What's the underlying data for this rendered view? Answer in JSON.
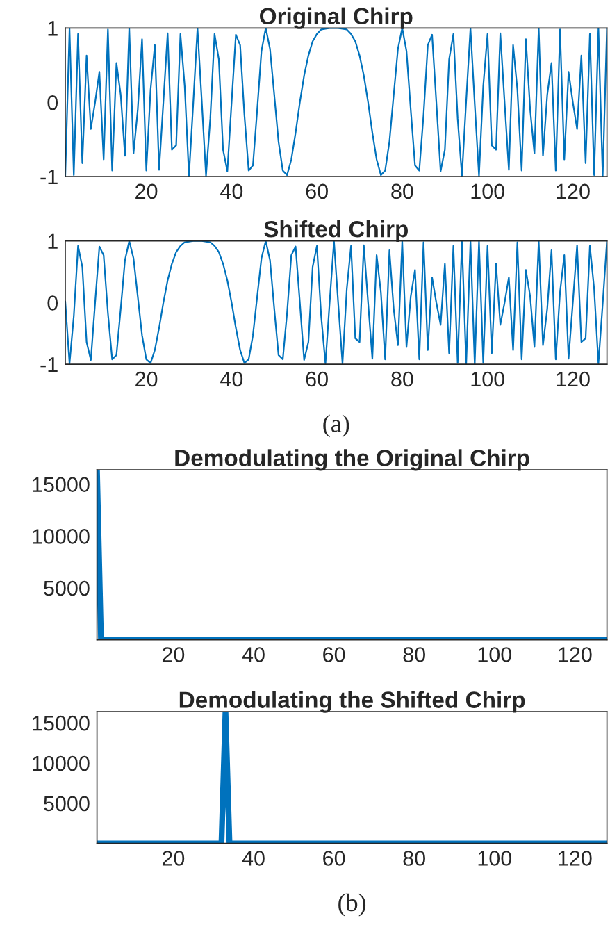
{
  "chart_data": [
    {
      "type": "line",
      "title": "Original Chirp",
      "xlim": [
        1,
        128
      ],
      "xticks": [
        20,
        40,
        60,
        80,
        100,
        120
      ],
      "ylim": [
        -1,
        1
      ],
      "yticks": [
        -1,
        0,
        1
      ],
      "grid": false,
      "legend": false,
      "x": [
        1,
        2,
        3,
        4,
        5,
        6,
        7,
        8,
        9,
        10,
        11,
        12,
        13,
        14,
        15,
        16,
        17,
        18,
        19,
        20,
        21,
        22,
        23,
        24,
        25,
        26,
        27,
        28,
        29,
        30,
        31,
        32,
        33,
        34,
        35,
        36,
        37,
        38,
        39,
        40,
        41,
        42,
        43,
        44,
        45,
        46,
        47,
        48,
        49,
        50,
        51,
        52,
        53,
        54,
        55,
        56,
        57,
        58,
        59,
        60,
        61,
        62,
        63,
        64,
        65,
        66,
        67,
        68,
        69,
        70,
        71,
        72,
        73,
        74,
        75,
        76,
        77,
        78,
        79,
        80,
        81,
        82,
        83,
        84,
        85,
        86,
        87,
        88,
        89,
        90,
        91,
        92,
        93,
        94,
        95,
        96,
        97,
        98,
        99,
        100,
        101,
        102,
        103,
        104,
        105,
        106,
        107,
        108,
        109,
        110,
        111,
        112,
        113,
        114,
        115,
        116,
        117,
        118,
        119,
        120,
        121,
        122,
        123,
        124,
        125,
        126,
        127,
        128
      ],
      "series": [
        {
          "color": "#0072bd",
          "values": [
            -1.0,
            0.99,
            -0.98,
            0.92,
            -0.82,
            0.63,
            -0.36,
            0,
            0.41,
            -0.77,
            0.98,
            -0.92,
            0.53,
            0.1,
            -0.72,
            1,
            -0.69,
            -0.1,
            0.85,
            -0.92,
            0.17,
            0.77,
            -0.91,
            0,
            0.93,
            -0.64,
            -0.58,
            0.92,
            0.22,
            -0.99,
            -0.02,
            1,
            0.02,
            -0.99,
            -0.22,
            0.92,
            0.58,
            -0.64,
            -0.93,
            0,
            0.91,
            0.77,
            -0.17,
            -0.92,
            -0.85,
            -0.1,
            0.69,
            1,
            0.72,
            0.1,
            -0.53,
            -0.92,
            -0.98,
            -0.77,
            -0.41,
            0,
            0.36,
            0.63,
            0.82,
            0.92,
            0.98,
            0.99,
            1.0,
            1,
            1.0,
            0.99,
            0.98,
            0.92,
            0.82,
            0.63,
            0.36,
            0,
            -0.41,
            -0.77,
            -0.98,
            -0.92,
            -0.53,
            0.1,
            0.72,
            1,
            0.69,
            -0.1,
            -0.85,
            -0.92,
            -0.17,
            0.77,
            0.91,
            0,
            -0.93,
            -0.64,
            0.58,
            0.92,
            -0.22,
            -0.99,
            0.02,
            1,
            -0.02,
            -0.99,
            0.22,
            0.92,
            -0.58,
            -0.64,
            0.93,
            0,
            -0.91,
            0.77,
            0.17,
            -0.92,
            0.85,
            -0.1,
            -0.69,
            1,
            -0.72,
            0.1,
            0.53,
            -0.92,
            0.98,
            -0.77,
            0.41,
            0,
            -0.36,
            0.63,
            -0.82,
            0.92,
            -0.98,
            0.99,
            -1.0,
            1
          ]
        }
      ]
    },
    {
      "type": "line",
      "title": "Shifted Chirp",
      "xlim": [
        1,
        128
      ],
      "xticks": [
        20,
        40,
        60,
        80,
        100,
        120
      ],
      "ylim": [
        -1,
        1
      ],
      "yticks": [
        -1,
        0,
        1
      ],
      "grid": false,
      "legend": false,
      "annotations": [
        "(a)"
      ],
      "x": [
        1,
        2,
        3,
        4,
        5,
        6,
        7,
        8,
        9,
        10,
        11,
        12,
        13,
        14,
        15,
        16,
        17,
        18,
        19,
        20,
        21,
        22,
        23,
        24,
        25,
        26,
        27,
        28,
        29,
        30,
        31,
        32,
        33,
        34,
        35,
        36,
        37,
        38,
        39,
        40,
        41,
        42,
        43,
        44,
        45,
        46,
        47,
        48,
        49,
        50,
        51,
        52,
        53,
        54,
        55,
        56,
        57,
        58,
        59,
        60,
        61,
        62,
        63,
        64,
        65,
        66,
        67,
        68,
        69,
        70,
        71,
        72,
        73,
        74,
        75,
        76,
        77,
        78,
        79,
        80,
        81,
        82,
        83,
        84,
        85,
        86,
        87,
        88,
        89,
        90,
        91,
        92,
        93,
        94,
        95,
        96,
        97,
        98,
        99,
        100,
        101,
        102,
        103,
        104,
        105,
        106,
        107,
        108,
        109,
        110,
        111,
        112,
        113,
        114,
        115,
        116,
        117,
        118,
        119,
        120,
        121,
        122,
        123,
        124,
        125,
        126,
        127,
        128
      ],
      "series": [
        {
          "color": "#0072bd",
          "values": [
            0.02,
            -0.99,
            -0.22,
            0.92,
            0.58,
            -0.64,
            -0.93,
            0,
            0.91,
            0.77,
            -0.17,
            -0.92,
            -0.85,
            -0.1,
            0.69,
            1,
            0.72,
            0.1,
            -0.53,
            -0.92,
            -0.98,
            -0.77,
            -0.41,
            0,
            0.36,
            0.63,
            0.82,
            0.92,
            0.98,
            0.99,
            1.0,
            1,
            1.0,
            0.99,
            0.98,
            0.92,
            0.82,
            0.63,
            0.36,
            0,
            -0.41,
            -0.77,
            -0.98,
            -0.92,
            -0.53,
            0.1,
            0.72,
            1,
            0.69,
            -0.1,
            -0.85,
            -0.92,
            -0.17,
            0.77,
            0.91,
            0,
            -0.93,
            -0.64,
            0.58,
            0.92,
            -0.22,
            -0.99,
            0.02,
            1,
            -0.02,
            -0.99,
            0.22,
            0.92,
            -0.58,
            -0.64,
            0.93,
            0,
            -0.91,
            0.77,
            0.17,
            -0.92,
            0.85,
            -0.1,
            -0.69,
            1,
            -0.72,
            0.1,
            0.53,
            -0.92,
            0.98,
            -0.77,
            0.41,
            0,
            -0.36,
            0.63,
            -0.82,
            0.92,
            -0.98,
            0.99,
            -1.0,
            1,
            -1.0,
            0.99,
            -0.98,
            0.92,
            -0.82,
            0.63,
            -0.36,
            0,
            0.41,
            -0.77,
            0.98,
            -0.92,
            0.53,
            0.1,
            -0.72,
            1,
            -0.69,
            -0.1,
            0.85,
            -0.92,
            0.17,
            0.77,
            -0.91,
            0,
            0.93,
            -0.64,
            -0.58,
            0.92,
            0.22,
            -0.99,
            -0.02,
            1
          ]
        }
      ]
    },
    {
      "type": "line",
      "title": "Demodulating the Original Chirp",
      "xlim": [
        1,
        128
      ],
      "xticks": [
        20,
        40,
        60,
        80,
        100,
        120
      ],
      "ylim": [
        0,
        16384
      ],
      "yticks": [
        5000,
        10000,
        15000
      ],
      "grid": false,
      "legend": false,
      "series": [
        {
          "color": "#0072bd",
          "x": [
            1,
            2,
            128
          ],
          "values": [
            16384,
            0,
            0
          ]
        }
      ]
    },
    {
      "type": "line",
      "title": "Demodulating the Shifted Chirp",
      "xlim": [
        1,
        128
      ],
      "xticks": [
        20,
        40,
        60,
        80,
        100,
        120
      ],
      "ylim": [
        0,
        16384
      ],
      "yticks": [
        5000,
        10000,
        15000
      ],
      "grid": false,
      "legend": false,
      "annotations": [
        "(b)"
      ],
      "series": [
        {
          "color": "#0072bd",
          "x": [
            1,
            32,
            33,
            34,
            128
          ],
          "values": [
            0,
            0,
            16384,
            0,
            0
          ]
        }
      ]
    }
  ]
}
